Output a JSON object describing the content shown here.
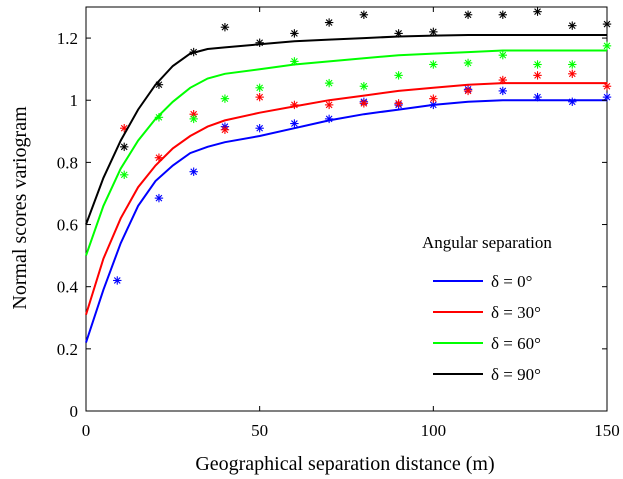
{
  "chart_data": {
    "type": "line",
    "title": "",
    "xlabel": "Geographical separation distance (m)",
    "ylabel": "Normal scores variogram",
    "xlim": [
      0,
      150
    ],
    "ylim": [
      0,
      1.3
    ],
    "xticks": [
      0,
      50,
      100,
      150
    ],
    "xtick_labels": [
      "0",
      "50",
      "100",
      "150"
    ],
    "yticks": [
      0,
      0.2,
      0.4,
      0.6,
      0.8,
      1,
      1.2
    ],
    "ytick_labels": [
      "0",
      "0.2",
      "0.4",
      "0.6",
      "0.8",
      "1",
      "1.2"
    ],
    "grid": false,
    "legend": {
      "title": "Angular separation",
      "position": "center-right",
      "entries": [
        "δ = 0°",
        "δ = 30°",
        "δ = 60°",
        "δ = 90°"
      ]
    },
    "series": [
      {
        "name": "δ = 0°",
        "color": "#0000ff",
        "model": {
          "x": [
            0,
            5,
            10,
            15,
            20,
            25,
            30,
            35,
            40,
            50,
            60,
            70,
            80,
            90,
            100,
            110,
            120,
            130,
            140,
            150
          ],
          "y": [
            0.22,
            0.39,
            0.54,
            0.66,
            0.74,
            0.79,
            0.83,
            0.85,
            0.865,
            0.885,
            0.91,
            0.935,
            0.955,
            0.97,
            0.985,
            0.995,
            1.0,
            1.0,
            1.0,
            1.0
          ]
        },
        "experimental": {
          "x": [
            9,
            21,
            31,
            40,
            50,
            60,
            70,
            80,
            90,
            100,
            110,
            120,
            130,
            140,
            150
          ],
          "y": [
            0.42,
            0.685,
            0.77,
            0.915,
            0.91,
            0.925,
            0.94,
            0.995,
            0.985,
            0.985,
            1.035,
            1.03,
            1.01,
            0.995,
            1.01
          ]
        }
      },
      {
        "name": "δ = 30°",
        "color": "#ff0000",
        "model": {
          "x": [
            0,
            5,
            10,
            15,
            20,
            25,
            30,
            35,
            40,
            50,
            60,
            70,
            80,
            90,
            100,
            110,
            120,
            130,
            140,
            150
          ],
          "y": [
            0.31,
            0.49,
            0.62,
            0.72,
            0.79,
            0.845,
            0.885,
            0.915,
            0.935,
            0.96,
            0.98,
            1.0,
            1.015,
            1.03,
            1.04,
            1.05,
            1.055,
            1.055,
            1.055,
            1.055
          ]
        },
        "experimental": {
          "x": [
            11,
            21,
            31,
            40,
            50,
            60,
            70,
            80,
            90,
            100,
            110,
            120,
            130,
            140,
            150
          ],
          "y": [
            0.91,
            0.815,
            0.955,
            0.905,
            1.01,
            0.985,
            0.985,
            0.99,
            0.99,
            1.005,
            1.03,
            1.065,
            1.08,
            1.085,
            1.045
          ]
        }
      },
      {
        "name": "δ = 60°",
        "color": "#00ff00",
        "model": {
          "x": [
            0,
            5,
            10,
            15,
            20,
            25,
            30,
            35,
            40,
            50,
            60,
            70,
            80,
            90,
            100,
            110,
            120,
            130,
            140,
            150
          ],
          "y": [
            0.5,
            0.66,
            0.78,
            0.87,
            0.94,
            0.995,
            1.04,
            1.07,
            1.085,
            1.1,
            1.115,
            1.125,
            1.135,
            1.145,
            1.15,
            1.155,
            1.16,
            1.16,
            1.16,
            1.16
          ]
        },
        "experimental": {
          "x": [
            11,
            21,
            31,
            40,
            50,
            60,
            70,
            80,
            90,
            100,
            110,
            120,
            130,
            140,
            150
          ],
          "y": [
            0.76,
            0.945,
            0.94,
            1.005,
            1.04,
            1.125,
            1.055,
            1.045,
            1.08,
            1.115,
            1.12,
            1.145,
            1.115,
            1.115,
            1.175
          ]
        }
      },
      {
        "name": "δ = 90°",
        "color": "#000000",
        "model": {
          "x": [
            0,
            5,
            10,
            15,
            20,
            25,
            30,
            35,
            40,
            50,
            60,
            70,
            80,
            90,
            100,
            110,
            120,
            130,
            140,
            150
          ],
          "y": [
            0.6,
            0.75,
            0.87,
            0.97,
            1.05,
            1.11,
            1.15,
            1.165,
            1.17,
            1.18,
            1.19,
            1.195,
            1.2,
            1.205,
            1.208,
            1.21,
            1.21,
            1.21,
            1.21,
            1.21
          ]
        },
        "experimental": {
          "x": [
            11,
            21,
            31,
            40,
            50,
            60,
            70,
            80,
            90,
            100,
            110,
            120,
            130,
            140,
            150
          ],
          "y": [
            0.85,
            1.05,
            1.155,
            1.235,
            1.185,
            1.215,
            1.25,
            1.275,
            1.215,
            1.22,
            1.275,
            1.275,
            1.285,
            1.24,
            1.245
          ]
        }
      }
    ]
  }
}
